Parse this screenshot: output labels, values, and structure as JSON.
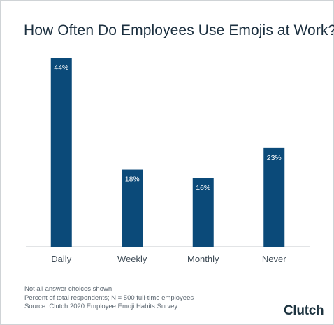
{
  "title": "How Often Do Employees Use Emojis at Work?",
  "notes": [
    "Not all answer choices shown",
    "Percent of total respondents; N = 500 full-time employees",
    "Source: Clutch 2020 Employee Emoji Habits Survey"
  ],
  "logo": {
    "text": "Clutch"
  },
  "colors": {
    "bar": "#0b4a79",
    "bar_label": "#ffffff",
    "axis": "#c6c9cc",
    "tick_text": "#3d4a55",
    "logo_accent": "#e2483d"
  },
  "chart_data": {
    "type": "bar",
    "title": "How Often Do Employees Use Emojis at Work?",
    "categories": [
      "Daily",
      "Weekly",
      "Monthly",
      "Never"
    ],
    "values": [
      44,
      18,
      16,
      23
    ],
    "value_labels": [
      "44%",
      "18%",
      "16%",
      "23%"
    ],
    "unit": "%",
    "xlabel": "",
    "ylabel": "",
    "ylim": [
      0,
      44
    ],
    "grid": false,
    "legend": "none"
  }
}
